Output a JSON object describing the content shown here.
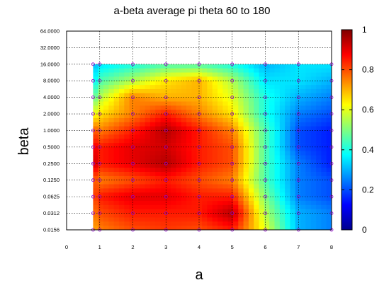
{
  "chart_data": {
    "type": "heatmap",
    "title": "a-beta average pi theta 60 to 180",
    "xlabel": "a",
    "ylabel": "beta",
    "x_ticks": [
      "0",
      "1",
      "2",
      "3",
      "4",
      "5",
      "6",
      "7",
      "8"
    ],
    "y_ticks": [
      "0.0156",
      "0.0312",
      "0.0625",
      "0.1250",
      "0.2500",
      "0.5000",
      "1.0000",
      "2.0000",
      "4.0000",
      "8.0000",
      "16.0000",
      "32.0000",
      "64.0000"
    ],
    "xlim": [
      0,
      8
    ],
    "ylim": [
      0.0156,
      64
    ],
    "y_scale": "log2",
    "grid": true,
    "colorbar": {
      "min": 0,
      "max": 1,
      "ticks": [
        "0",
        "0.2",
        "0.4",
        "0.6",
        "0.8",
        "1"
      ],
      "colormap": "jet"
    },
    "x_values": [
      0.8,
      1,
      2,
      3,
      4,
      5,
      6,
      7,
      8
    ],
    "y_values": [
      0.0156,
      0.0312,
      0.0625,
      0.125,
      0.25,
      0.5,
      1,
      2,
      4,
      8,
      16
    ],
    "z": [
      [
        0.7,
        0.75,
        0.8,
        0.82,
        0.8,
        0.85,
        0.6,
        0.3,
        0.25
      ],
      [
        0.75,
        0.8,
        0.85,
        0.85,
        0.85,
        0.95,
        0.55,
        0.3,
        0.25
      ],
      [
        0.8,
        0.85,
        0.9,
        0.9,
        0.85,
        0.85,
        0.5,
        0.25,
        0.2
      ],
      [
        0.8,
        0.75,
        0.8,
        0.85,
        0.8,
        0.75,
        0.45,
        0.25,
        0.2
      ],
      [
        0.95,
        0.85,
        0.9,
        0.95,
        0.85,
        0.8,
        0.45,
        0.25,
        0.15
      ],
      [
        0.9,
        0.85,
        0.9,
        0.92,
        0.85,
        0.8,
        0.45,
        0.2,
        0.15
      ],
      [
        0.8,
        0.75,
        0.85,
        0.95,
        0.85,
        0.75,
        0.45,
        0.2,
        0.15
      ],
      [
        0.6,
        0.65,
        0.75,
        0.85,
        0.75,
        0.65,
        0.4,
        0.25,
        0.2
      ],
      [
        0.45,
        0.55,
        0.75,
        0.7,
        0.7,
        0.6,
        0.4,
        0.3,
        0.25
      ],
      [
        0.35,
        0.45,
        0.55,
        0.65,
        0.7,
        0.55,
        0.35,
        0.35,
        0.3
      ],
      [
        0.3,
        0.35,
        0.4,
        0.45,
        0.45,
        0.4,
        0.3,
        0.35,
        0.35
      ]
    ]
  }
}
